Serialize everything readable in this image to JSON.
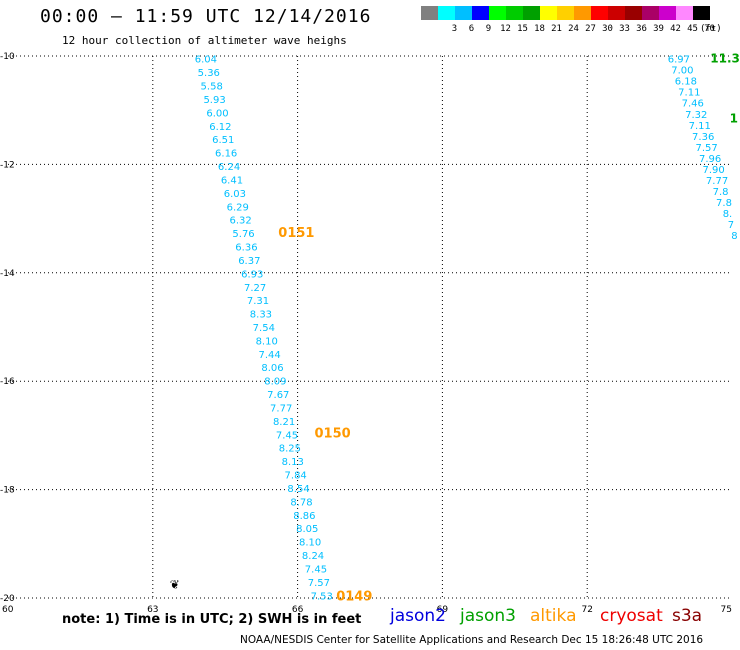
{
  "header": {
    "title": "00:00 – 11:59 UTC 12/14/2016",
    "subtitle": "12 hour collection of altimeter wave heighs"
  },
  "legend": {
    "items": [
      {
        "label": "",
        "color": "#808080"
      },
      {
        "label": "3",
        "color": "#00ffff"
      },
      {
        "label": "6",
        "color": "#00bfff"
      },
      {
        "label": "9",
        "color": "#0000ff"
      },
      {
        "label": "12",
        "color": "#00ff00"
      },
      {
        "label": "15",
        "color": "#00cc00"
      },
      {
        "label": "18",
        "color": "#00a000"
      },
      {
        "label": "21",
        "color": "#ffff00"
      },
      {
        "label": "24",
        "color": "#ffd000"
      },
      {
        "label": "27",
        "color": "#ff9900"
      },
      {
        "label": "30",
        "color": "#ff0000"
      },
      {
        "label": "33",
        "color": "#cc0000"
      },
      {
        "label": "36",
        "color": "#990000"
      },
      {
        "label": "39",
        "color": "#aa0066"
      },
      {
        "label": "42",
        "color": "#cc00cc"
      },
      {
        "label": "45",
        "color": "#ff88ff"
      },
      {
        "label": "70",
        "color": "#000000"
      }
    ],
    "unit": "(ft)"
  },
  "axes": {
    "lon_ticks": [
      "60",
      "63",
      "66",
      "69",
      "72",
      "75"
    ],
    "lat_ticks": [
      "-10",
      "-12",
      "-14",
      "-16",
      "-18",
      "-20"
    ]
  },
  "colors": {
    "cyan_value": "#00bfff",
    "orange_pass": "#ff9900",
    "green_value": "#00a000"
  },
  "pass_labels": [
    {
      "text": "0151",
      "lon": 65.6,
      "lat": -13.25
    },
    {
      "text": "0150",
      "lon": 66.35,
      "lat": -16.95
    },
    {
      "text": "0149",
      "lon": 66.8,
      "lat": -19.95
    }
  ],
  "track_a": {
    "values": [
      "6.04",
      "5.36",
      "5.58",
      "5.93",
      "6.00",
      "6.12",
      "6.51",
      "6.16",
      "6.24",
      "6.41",
      "6.03",
      "6.29",
      "6.32",
      "5.76",
      "6.36",
      "6.37",
      "6.93",
      "7.27",
      "7.31",
      "8.33",
      "7.54",
      "8.10",
      "7.44",
      "8.06",
      "8.09",
      "7.67",
      "7.77",
      "8.21",
      "7.45",
      "8.25",
      "8.13",
      "7.84",
      "8.54",
      "8.78",
      "8.86",
      "8.05",
      "8.10",
      "8.24",
      "7.45",
      "7.57",
      "7.53"
    ],
    "lon_start": 64.1,
    "lon_end": 66.5,
    "lat_start": -10.05,
    "lat_end": -19.95
  },
  "track_b": {
    "values": [
      "6.97",
      "7.00",
      "6.18",
      "7.11",
      "7.46",
      "7.32",
      "7.11",
      "7.36",
      "7.57",
      "7.96",
      "7.90",
      "7.77",
      "7.8",
      "7.8",
      "8.",
      "7",
      "8"
    ],
    "lon_start": 73.9,
    "lon_end": 75.05,
    "lat_start": -10.05,
    "lat_end": -13.3
  },
  "green_labels": [
    {
      "text": "11.3",
      "lon": 74.55,
      "lat": -10.05
    },
    {
      "text": "1",
      "lon": 74.95,
      "lat": -11.15
    }
  ],
  "markers": [
    {
      "symbol": "❦",
      "lon": 63.35,
      "lat": -19.75
    }
  ],
  "footer": {
    "note": "note: 1) Time is in UTC; 2) SWH is in feet",
    "satellites": [
      {
        "name": "jason2",
        "color": "#0000dd"
      },
      {
        "name": "jason3",
        "color": "#00a000"
      },
      {
        "name": "altika",
        "color": "#ff9900"
      },
      {
        "name": "cryosat",
        "color": "#ee0000"
      },
      {
        "name": "s3a",
        "color": "#880000"
      }
    ],
    "credit": "NOAA/NESDIS Center for Satellite Applications and Research    Dec 15 18:26:48 UTC 2016"
  }
}
